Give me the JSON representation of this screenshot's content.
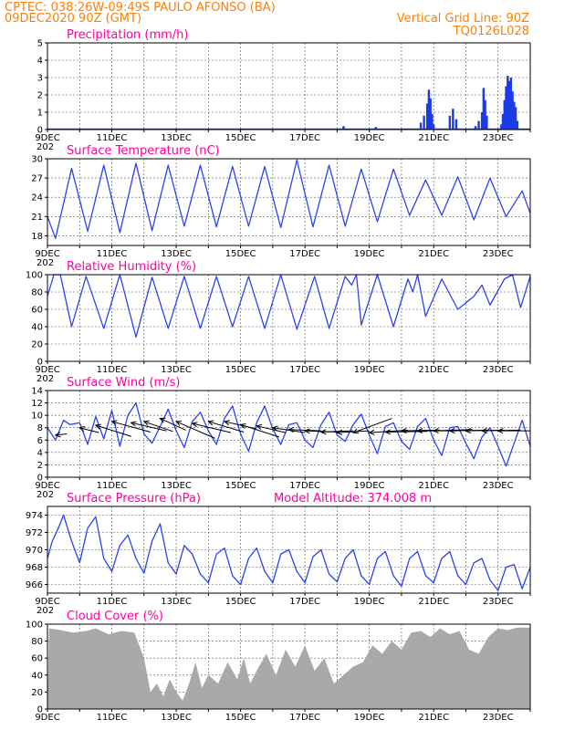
{
  "header": {
    "line1": "CPTEC:   038:26W-09:49S   PAULO AFONSO (BA)",
    "line2": "09DEC2020 90Z (GMT)",
    "grid_note": "Vertical Grid Line: 90Z",
    "code": "TQ0126L028"
  },
  "x_labels": [
    "9DEC",
    "11DEC",
    "13DEC",
    "15DEC",
    "17DEC",
    "19DEC",
    "21DEC",
    "23DEC"
  ],
  "x_year_label": "202",
  "extra_label": "Model Altitude: 374.008 m",
  "colors": {
    "line": "#2a44ee",
    "bar": "#1d3ae8",
    "cloud": "#a9a9a9",
    "header": "#ff7f00",
    "title": "#ff00a0"
  },
  "chart_data": [
    {
      "id": "precip",
      "type": "bar",
      "title": "Precipitation (mm/h)",
      "ylim": [
        0,
        5
      ],
      "yticks": [
        0,
        1,
        2,
        3,
        4,
        5
      ],
      "grid": true,
      "x_unit": "days since 09DEC2020 00Z",
      "bars": [
        [
          0.5,
          0.05
        ],
        [
          1.0,
          0.05
        ],
        [
          2.0,
          0.05
        ],
        [
          3.5,
          0.05
        ],
        [
          4.0,
          0.05
        ],
        [
          5.0,
          0.05
        ],
        [
          6.0,
          0.05
        ],
        [
          7.0,
          0.05
        ],
        [
          8.0,
          0.05
        ],
        [
          9.2,
          0.2
        ],
        [
          10.2,
          0.15
        ],
        [
          11.6,
          0.4
        ],
        [
          11.7,
          0.8
        ],
        [
          11.8,
          1.5
        ],
        [
          11.85,
          2.3
        ],
        [
          11.9,
          1.8
        ],
        [
          11.95,
          0.9
        ],
        [
          12.0,
          0.3
        ],
        [
          12.5,
          0.8
        ],
        [
          12.6,
          1.2
        ],
        [
          12.7,
          0.6
        ],
        [
          13.3,
          0.2
        ],
        [
          13.4,
          0.5
        ],
        [
          13.5,
          1.0
        ],
        [
          13.55,
          2.4
        ],
        [
          13.6,
          1.7
        ],
        [
          13.65,
          0.8
        ],
        [
          14.1,
          0.3
        ],
        [
          14.15,
          0.9
        ],
        [
          14.2,
          1.7
        ],
        [
          14.25,
          2.5
        ],
        [
          14.3,
          3.1
        ],
        [
          14.35,
          2.8
        ],
        [
          14.4,
          3.0
        ],
        [
          14.45,
          2.2
        ],
        [
          14.5,
          1.6
        ],
        [
          14.55,
          1.3
        ],
        [
          14.6,
          0.5
        ]
      ]
    },
    {
      "id": "temp",
      "type": "line",
      "title": "Surface Temperature (nC)",
      "ylim": [
        16.5,
        30
      ],
      "yticks": [
        18,
        21,
        24,
        27,
        30
      ],
      "grid": true,
      "x_unit": "days since 09DEC2020 00Z",
      "points": [
        [
          0,
          21
        ],
        [
          0.25,
          17.6
        ],
        [
          0.75,
          28.5
        ],
        [
          1.25,
          18.7
        ],
        [
          1.75,
          29
        ],
        [
          2.25,
          18.5
        ],
        [
          2.75,
          29.3
        ],
        [
          3.25,
          18.8
        ],
        [
          3.75,
          29
        ],
        [
          4.25,
          19.5
        ],
        [
          4.75,
          29
        ],
        [
          5.25,
          19.4
        ],
        [
          5.75,
          28.8
        ],
        [
          6.25,
          19.5
        ],
        [
          6.75,
          28.8
        ],
        [
          7.25,
          19.3
        ],
        [
          7.75,
          29.8
        ],
        [
          8.25,
          19.4
        ],
        [
          8.75,
          29
        ],
        [
          9.25,
          19.5
        ],
        [
          9.75,
          28.4
        ],
        [
          10.25,
          20.2
        ],
        [
          10.75,
          28.4
        ],
        [
          11.25,
          21.2
        ],
        [
          11.75,
          26.7
        ],
        [
          12.25,
          21.2
        ],
        [
          12.75,
          27.2
        ],
        [
          13.25,
          20.5
        ],
        [
          13.75,
          27
        ],
        [
          14.25,
          21
        ],
        [
          14.75,
          25
        ],
        [
          15,
          21.5
        ]
      ]
    },
    {
      "id": "rh",
      "type": "line",
      "title": "Relative Humidity (%)",
      "ylim": [
        0,
        100
      ],
      "yticks": [
        0,
        20,
        40,
        60,
        80,
        100
      ],
      "grid": true,
      "x_unit": "days since 09DEC2020 00Z",
      "points": [
        [
          0,
          75
        ],
        [
          0.2,
          100
        ],
        [
          0.4,
          100
        ],
        [
          0.75,
          40
        ],
        [
          1.2,
          98
        ],
        [
          1.75,
          38
        ],
        [
          2.25,
          100
        ],
        [
          2.75,
          28
        ],
        [
          3.25,
          97
        ],
        [
          3.75,
          38
        ],
        [
          4.25,
          98
        ],
        [
          4.75,
          38
        ],
        [
          5.25,
          98
        ],
        [
          5.75,
          40
        ],
        [
          6.25,
          98
        ],
        [
          6.75,
          38
        ],
        [
          7.25,
          100
        ],
        [
          7.75,
          37
        ],
        [
          8.3,
          98
        ],
        [
          8.75,
          38
        ],
        [
          9.25,
          98
        ],
        [
          9.45,
          88
        ],
        [
          9.6,
          100
        ],
        [
          9.75,
          42
        ],
        [
          10.25,
          100
        ],
        [
          10.75,
          40
        ],
        [
          11.2,
          95
        ],
        [
          11.35,
          80
        ],
        [
          11.5,
          100
        ],
        [
          11.75,
          52
        ],
        [
          12.25,
          95
        ],
        [
          12.75,
          60
        ],
        [
          13.25,
          75
        ],
        [
          13.5,
          88
        ],
        [
          13.75,
          65
        ],
        [
          14.2,
          95
        ],
        [
          14.45,
          100
        ],
        [
          14.7,
          62
        ],
        [
          15,
          98
        ]
      ]
    },
    {
      "id": "wind",
      "type": "line",
      "title": "Surface Wind (m/s)",
      "ylim": [
        0,
        14
      ],
      "yticks": [
        0,
        2,
        4,
        6,
        8,
        10,
        12,
        14
      ],
      "grid": true,
      "x_unit": "days since 09DEC2020 00Z",
      "points": [
        [
          0,
          8
        ],
        [
          0.25,
          6
        ],
        [
          0.5,
          9.2
        ],
        [
          0.7,
          8.5
        ],
        [
          1.0,
          8.8
        ],
        [
          1.25,
          5.3
        ],
        [
          1.5,
          9.8
        ],
        [
          1.75,
          6.2
        ],
        [
          2.0,
          10.8
        ],
        [
          2.25,
          5.0
        ],
        [
          2.5,
          10.0
        ],
        [
          2.75,
          12.0
        ],
        [
          3.0,
          7.0
        ],
        [
          3.25,
          5.5
        ],
        [
          3.5,
          8.2
        ],
        [
          3.75,
          11.0
        ],
        [
          4.0,
          7.5
        ],
        [
          4.25,
          4.8
        ],
        [
          4.5,
          9.0
        ],
        [
          4.75,
          10.5
        ],
        [
          5.0,
          7.5
        ],
        [
          5.25,
          5.3
        ],
        [
          5.5,
          9.5
        ],
        [
          5.75,
          11.5
        ],
        [
          6.0,
          7.0
        ],
        [
          6.25,
          4.2
        ],
        [
          6.5,
          8.8
        ],
        [
          6.75,
          11.5
        ],
        [
          7.0,
          7.8
        ],
        [
          7.25,
          5.3
        ],
        [
          7.5,
          8.5
        ],
        [
          7.75,
          8.8
        ],
        [
          8.0,
          6.0
        ],
        [
          8.25,
          4.8
        ],
        [
          8.5,
          8.5
        ],
        [
          8.75,
          10.5
        ],
        [
          9.0,
          6.8
        ],
        [
          9.25,
          5.8
        ],
        [
          9.5,
          8.5
        ],
        [
          9.75,
          10.2
        ],
        [
          10.0,
          6.8
        ],
        [
          10.25,
          3.8
        ],
        [
          10.5,
          8.2
        ],
        [
          10.75,
          8.8
        ],
        [
          11.0,
          5.8
        ],
        [
          11.25,
          4.5
        ],
        [
          11.5,
          8.2
        ],
        [
          11.75,
          9.5
        ],
        [
          12.0,
          6.0
        ],
        [
          12.25,
          3.5
        ],
        [
          12.5,
          8.0
        ],
        [
          12.75,
          8.2
        ],
        [
          13.0,
          5.5
        ],
        [
          13.25,
          3.0
        ],
        [
          13.5,
          6.5
        ],
        [
          13.75,
          8.0
        ],
        [
          14.0,
          5.0
        ],
        [
          14.25,
          1.8
        ],
        [
          14.5,
          5.5
        ],
        [
          14.75,
          9.2
        ],
        [
          15,
          5.0
        ]
      ],
      "arrows": [
        [
          0.25,
          6.8,
          0.6,
          7.0
        ],
        [
          1.0,
          8.0,
          1.6,
          7.2
        ],
        [
          1.5,
          8.4,
          2.6,
          6.6
        ],
        [
          2.0,
          9.0,
          3.2,
          7.3
        ],
        [
          2.6,
          8.8,
          3.7,
          7.5
        ],
        [
          3.0,
          9.0,
          3.9,
          7.4
        ],
        [
          3.5,
          9.5,
          4.3,
          7.6
        ],
        [
          4.0,
          9.0,
          5.2,
          6.3
        ],
        [
          4.5,
          8.7,
          5.7,
          7.2
        ],
        [
          5.0,
          9.0,
          6.1,
          7.3
        ],
        [
          5.5,
          9.0,
          6.5,
          7.8
        ],
        [
          6.0,
          8.5,
          7.2,
          6.5
        ],
        [
          6.5,
          8.3,
          7.4,
          7.2
        ],
        [
          7.0,
          8.0,
          8.0,
          7.2
        ],
        [
          7.5,
          7.7,
          8.5,
          7.5
        ],
        [
          8.0,
          7.5,
          9.0,
          7.3
        ],
        [
          8.5,
          7.3,
          9.5,
          7.5
        ],
        [
          9.0,
          7.2,
          10.0,
          7.5
        ],
        [
          9.5,
          7.2,
          10.7,
          9.5
        ],
        [
          10.0,
          7.2,
          11.2,
          7.6
        ],
        [
          10.5,
          7.3,
          11.8,
          7.4
        ],
        [
          11.0,
          7.5,
          12.2,
          7.6
        ],
        [
          11.5,
          7.5,
          12.7,
          7.5
        ],
        [
          12.0,
          7.5,
          13.2,
          7.7
        ],
        [
          12.5,
          7.5,
          13.7,
          7.6
        ],
        [
          13.0,
          7.5,
          14.2,
          7.6
        ],
        [
          13.5,
          7.5,
          14.7,
          7.6
        ],
        [
          14.0,
          7.5,
          15.0,
          7.5
        ]
      ]
    },
    {
      "id": "press",
      "type": "line",
      "title": "Surface Pressure (hPa)",
      "ylim": [
        965,
        975
      ],
      "yticks": [
        966,
        968,
        970,
        972,
        974
      ],
      "grid": true,
      "x_unit": "days since 09DEC2020 00Z",
      "points": [
        [
          0,
          969
        ],
        [
          0.15,
          971
        ],
        [
          0.35,
          972.6
        ],
        [
          0.5,
          974
        ],
        [
          0.75,
          971
        ],
        [
          1.0,
          968.5
        ],
        [
          1.25,
          972.5
        ],
        [
          1.5,
          973.8
        ],
        [
          1.75,
          969
        ],
        [
          2.0,
          967.5
        ],
        [
          2.25,
          970.5
        ],
        [
          2.5,
          971.7
        ],
        [
          2.75,
          969
        ],
        [
          3.0,
          967.3
        ],
        [
          3.25,
          971
        ],
        [
          3.5,
          973
        ],
        [
          3.75,
          968.5
        ],
        [
          4.0,
          967.2
        ],
        [
          4.25,
          970.5
        ],
        [
          4.5,
          969.5
        ],
        [
          4.75,
          967.2
        ],
        [
          5.0,
          966.2
        ],
        [
          5.25,
          969.5
        ],
        [
          5.5,
          970.2
        ],
        [
          5.75,
          967
        ],
        [
          6.0,
          966
        ],
        [
          6.25,
          969
        ],
        [
          6.5,
          970.2
        ],
        [
          6.75,
          967.5
        ],
        [
          7.0,
          966.2
        ],
        [
          7.25,
          969.5
        ],
        [
          7.5,
          970
        ],
        [
          7.75,
          967.5
        ],
        [
          8.0,
          966.2
        ],
        [
          8.25,
          969.2
        ],
        [
          8.5,
          970
        ],
        [
          8.75,
          967.2
        ],
        [
          9.0,
          966.3
        ],
        [
          9.25,
          969
        ],
        [
          9.5,
          970
        ],
        [
          9.75,
          967
        ],
        [
          10.0,
          966
        ],
        [
          10.25,
          969
        ],
        [
          10.5,
          969.8
        ],
        [
          10.75,
          967
        ],
        [
          11.0,
          965.8
        ],
        [
          11.25,
          969
        ],
        [
          11.5,
          969.8
        ],
        [
          11.75,
          967
        ],
        [
          12.0,
          966.2
        ],
        [
          12.25,
          969
        ],
        [
          12.5,
          969.8
        ],
        [
          12.75,
          967
        ],
        [
          13.0,
          966
        ],
        [
          13.25,
          968.5
        ],
        [
          13.5,
          969
        ],
        [
          13.75,
          966.5
        ],
        [
          14.0,
          965.3
        ],
        [
          14.25,
          968
        ],
        [
          14.5,
          968.3
        ],
        [
          14.75,
          965.5
        ],
        [
          15,
          968
        ]
      ]
    },
    {
      "id": "cloud",
      "type": "area",
      "title": "Cloud Cover (%)",
      "ylim": [
        0,
        100
      ],
      "yticks": [
        0,
        20,
        40,
        60,
        80,
        100
      ],
      "grid": true,
      "x_unit": "days since 09DEC2020 00Z",
      "points": [
        [
          0,
          0
        ],
        [
          0.05,
          95
        ],
        [
          0.4,
          93
        ],
        [
          0.8,
          90
        ],
        [
          1.2,
          92
        ],
        [
          1.5,
          95
        ],
        [
          1.9,
          88
        ],
        [
          2.3,
          92
        ],
        [
          2.7,
          90
        ],
        [
          3.0,
          60
        ],
        [
          3.2,
          20
        ],
        [
          3.4,
          30
        ],
        [
          3.6,
          15
        ],
        [
          3.8,
          35
        ],
        [
          4.0,
          20
        ],
        [
          4.2,
          10
        ],
        [
          4.4,
          30
        ],
        [
          4.6,
          55
        ],
        [
          4.8,
          25
        ],
        [
          5.0,
          40
        ],
        [
          5.3,
          30
        ],
        [
          5.6,
          55
        ],
        [
          5.9,
          35
        ],
        [
          6.1,
          60
        ],
        [
          6.3,
          30
        ],
        [
          6.5,
          45
        ],
        [
          6.8,
          65
        ],
        [
          7.1,
          40
        ],
        [
          7.4,
          70
        ],
        [
          7.7,
          50
        ],
        [
          8.0,
          75
        ],
        [
          8.3,
          45
        ],
        [
          8.6,
          60
        ],
        [
          8.9,
          30
        ],
        [
          9.2,
          40
        ],
        [
          9.5,
          50
        ],
        [
          9.8,
          55
        ],
        [
          10.1,
          75
        ],
        [
          10.4,
          65
        ],
        [
          10.7,
          80
        ],
        [
          11.0,
          70
        ],
        [
          11.3,
          90
        ],
        [
          11.6,
          92
        ],
        [
          11.9,
          85
        ],
        [
          12.2,
          95
        ],
        [
          12.5,
          88
        ],
        [
          12.8,
          92
        ],
        [
          13.1,
          70
        ],
        [
          13.4,
          65
        ],
        [
          13.7,
          85
        ],
        [
          14.0,
          95
        ],
        [
          14.3,
          93
        ],
        [
          14.6,
          96
        ],
        [
          15,
          96
        ]
      ]
    }
  ]
}
